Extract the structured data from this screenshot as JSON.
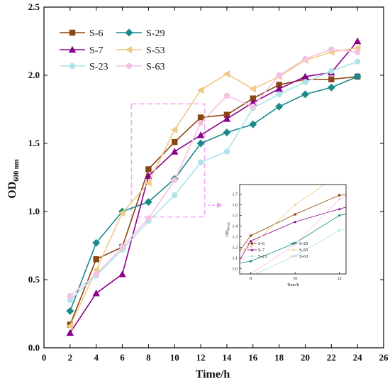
{
  "chart_data": {
    "type": "line",
    "title": "",
    "xlabel": "Time/h",
    "ylabel_main": "OD",
    "ylabel_sub": "600 nm",
    "xlim": [
      0,
      26
    ],
    "ylim": [
      0,
      2.5
    ],
    "xticks": [
      0,
      2,
      4,
      6,
      8,
      10,
      12,
      14,
      16,
      18,
      20,
      22,
      24,
      26
    ],
    "yticks": [
      0.0,
      0.5,
      1.0,
      1.5,
      2.0,
      2.5
    ],
    "ytick_labels": [
      "0.0",
      "0.5",
      "1.0",
      "1.5",
      "2.0",
      "2.5"
    ],
    "grid": false,
    "legend_position": "top-left",
    "x": [
      2,
      4,
      6,
      8,
      10,
      12,
      14,
      16,
      18,
      20,
      22,
      24
    ],
    "series": [
      {
        "name": "S-6",
        "color": "#8B4513",
        "marker": "square",
        "values": [
          0.17,
          0.65,
          0.74,
          1.31,
          1.51,
          1.69,
          1.71,
          1.83,
          1.93,
          1.97,
          1.97,
          1.99
        ]
      },
      {
        "name": "S-29",
        "color": "#1a8a8a",
        "marker": "diamond",
        "values": [
          0.27,
          0.77,
          1.0,
          1.07,
          1.24,
          1.5,
          1.58,
          1.64,
          1.77,
          1.86,
          1.91,
          1.99
        ]
      },
      {
        "name": "S-7",
        "color": "#8B008B",
        "marker": "triangle",
        "values": [
          0.11,
          0.4,
          0.54,
          1.26,
          1.44,
          1.56,
          1.68,
          1.8,
          1.9,
          1.99,
          2.02,
          2.25
        ]
      },
      {
        "name": "S-53",
        "color": "#F0C987",
        "marker": "triangle-left",
        "values": [
          0.16,
          0.57,
          0.99,
          1.21,
          1.6,
          1.89,
          2.01,
          1.9,
          1.99,
          2.11,
          2.17,
          2.2
        ]
      },
      {
        "name": "S-23",
        "color": "#AEE4EA",
        "marker": "circle",
        "values": [
          0.35,
          0.53,
          0.72,
          0.93,
          1.12,
          1.36,
          1.44,
          1.76,
          1.86,
          1.95,
          2.03,
          2.1
        ]
      },
      {
        "name": "S-63",
        "color": "#F4C2E2",
        "marker": "circle",
        "values": [
          0.38,
          0.54,
          0.74,
          0.95,
          1.23,
          1.65,
          1.85,
          1.77,
          2.0,
          2.12,
          2.19,
          2.17
        ]
      }
    ],
    "zoom_region": {
      "x": [
        6.7,
        12.3
      ],
      "y": [
        0.96,
        1.79
      ],
      "color": "#F4A6F4"
    },
    "inset": {
      "xlabel": "Time/h",
      "ylabel_main": "OD",
      "ylabel_sub": "600 nm",
      "xlim": [
        7.5,
        12.3
      ],
      "ylim": [
        0.95,
        1.79
      ],
      "xticks": [
        8,
        10,
        12
      ],
      "yticks": [
        1.0,
        1.1,
        1.2,
        1.3,
        1.4,
        1.5,
        1.6,
        1.7
      ],
      "ytick_labels": [
        "1.0",
        "1.1",
        "1.2",
        "1.3",
        "1.4",
        "1.5",
        "1.6",
        "1.7"
      ]
    }
  }
}
